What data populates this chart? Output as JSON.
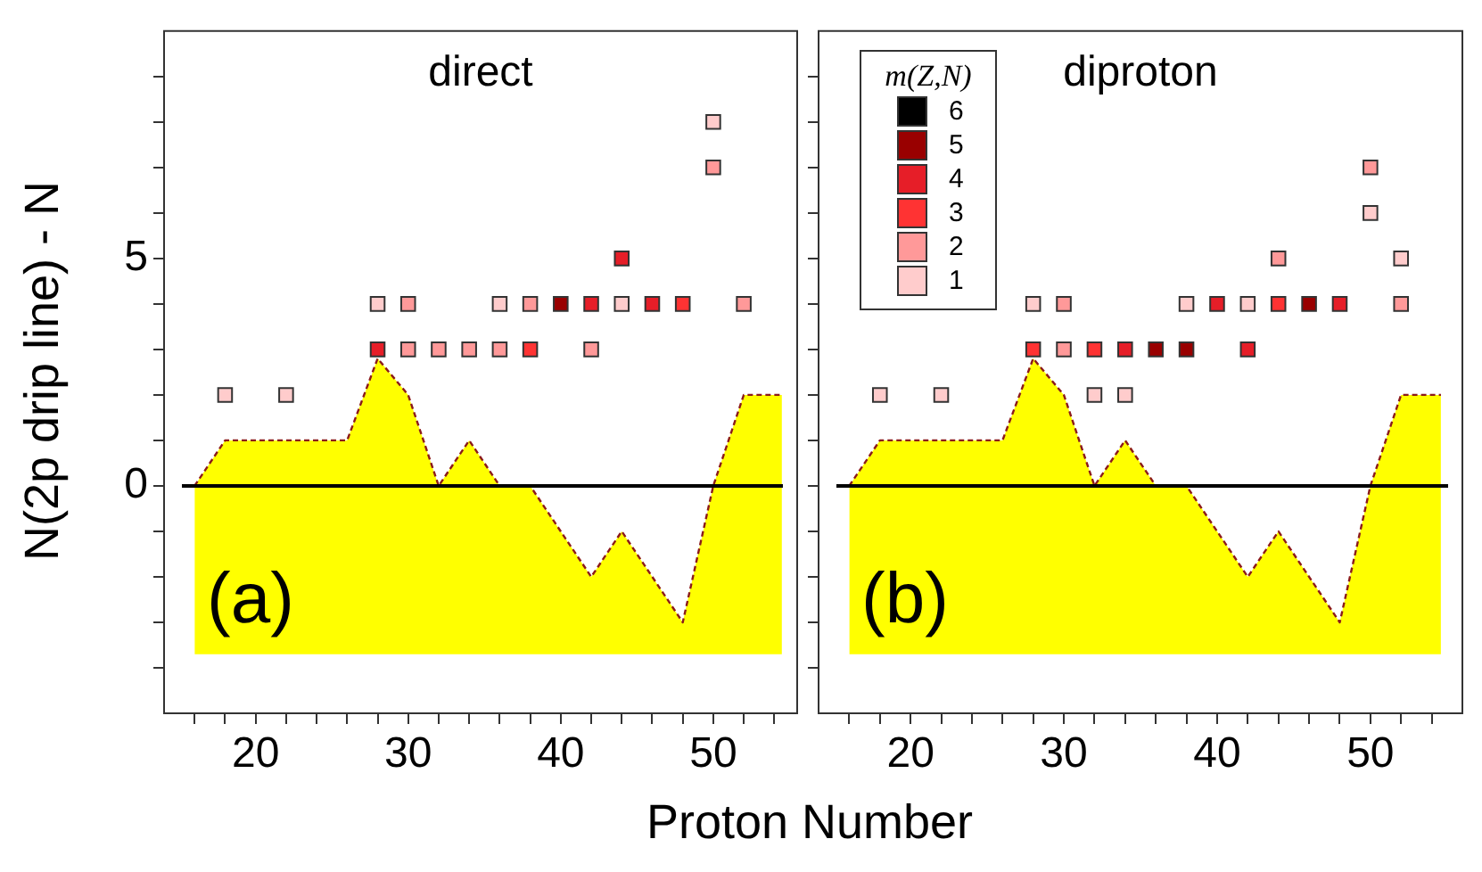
{
  "chart_data": [
    {
      "type": "scatter",
      "title": "direct",
      "xlabel": "Proton Number",
      "ylabel": "N(2p drip line) - N",
      "annotations": [
        "(a)"
      ],
      "xlim": [
        14,
        55.5
      ],
      "ylim": [
        -5,
        10
      ],
      "xticks": [
        {
          "value": 16,
          "label": null
        },
        {
          "value": 18,
          "label": null
        },
        20,
        {
          "value": 22,
          "label": null
        },
        {
          "value": 24,
          "label": null
        },
        {
          "value": 26,
          "label": null
        },
        {
          "value": 28,
          "label": null
        },
        30,
        {
          "value": 32,
          "label": null
        },
        {
          "value": 34,
          "label": null
        },
        {
          "value": 36,
          "label": null
        },
        {
          "value": 38,
          "label": null
        },
        40,
        {
          "value": 42,
          "label": null
        },
        {
          "value": 44,
          "label": null
        },
        {
          "value": 46,
          "label": null
        },
        {
          "value": 48,
          "label": null
        },
        50,
        {
          "value": 52,
          "label": null
        },
        {
          "value": 54,
          "label": null
        }
      ],
      "yticks": [
        {
          "value": -4,
          "label": null
        },
        {
          "value": -3,
          "label": null
        },
        {
          "value": -2,
          "label": null
        },
        {
          "value": -1,
          "label": null
        },
        0,
        {
          "value": 1,
          "label": null
        },
        {
          "value": 2,
          "label": null
        },
        {
          "value": 3,
          "label": null
        },
        {
          "value": 4,
          "label": null
        },
        5,
        {
          "value": 6,
          "label": null
        },
        {
          "value": 7,
          "label": null
        },
        {
          "value": 8,
          "label": null
        },
        {
          "value": 9,
          "label": null
        }
      ],
      "ref_lines": [
        {
          "axis": "y",
          "value": 0,
          "color": "#000000"
        }
      ],
      "marker": "square",
      "grid": false,
      "legend": false,
      "series": [
        {
          "type": "area",
          "color": "#ffff00",
          "line_style": "dashed",
          "marker": "none",
          "x": [
            16,
            16,
            18,
            26,
            28,
            30,
            32,
            34,
            36,
            38,
            42,
            44,
            48,
            50,
            52,
            54.5,
            54.5
          ],
          "values": [
            -3.7,
            0,
            1,
            1,
            2.8,
            2,
            0,
            1,
            0,
            0,
            -2,
            -1,
            -3,
            0,
            2,
            2,
            -3.7
          ]
        },
        {
          "color": "#990000",
          "x": [
            40
          ],
          "values": [
            4
          ]
        },
        {
          "color": "#e61e28",
          "x": [
            28,
            42,
            46,
            44
          ],
          "values": [
            3,
            4,
            4,
            5
          ]
        },
        {
          "color": "#ff3333",
          "x": [
            38,
            48
          ],
          "values": [
            3,
            4
          ]
        },
        {
          "color": "#ff9999",
          "x": [
            30,
            32,
            34,
            36,
            42,
            30,
            38,
            50
          ],
          "values": [
            3,
            3,
            3,
            3,
            3,
            4,
            4,
            7
          ]
        },
        {
          "color": "#ffcccc",
          "x": [
            18,
            22,
            28,
            36,
            44,
            50
          ],
          "values": [
            2,
            2,
            4,
            4,
            4,
            8
          ]
        },
        {
          "color": "#ff9999",
          "x": [
            52
          ],
          "values": [
            4
          ]
        }
      ]
    },
    {
      "type": "scatter",
      "title": "diproton",
      "annotations": [
        "(b)"
      ],
      "legend_title": "m(Z,N)",
      "xlim": [
        14,
        56
      ],
      "ylim": [
        -5,
        10
      ],
      "tick_labels": "x",
      "xticks": [
        {
          "value": 16,
          "label": null
        },
        {
          "value": 18,
          "label": null
        },
        20,
        {
          "value": 22,
          "label": null
        },
        {
          "value": 24,
          "label": null
        },
        {
          "value": 26,
          "label": null
        },
        {
          "value": 28,
          "label": null
        },
        30,
        {
          "value": 32,
          "label": null
        },
        {
          "value": 34,
          "label": null
        },
        {
          "value": 36,
          "label": null
        },
        {
          "value": 38,
          "label": null
        },
        40,
        {
          "value": 42,
          "label": null
        },
        {
          "value": 44,
          "label": null
        },
        {
          "value": 46,
          "label": null
        },
        {
          "value": 48,
          "label": null
        },
        50,
        {
          "value": 52,
          "label": null
        },
        {
          "value": 54,
          "label": null
        }
      ],
      "yticks": [
        {
          "value": -4,
          "label": null
        },
        {
          "value": -3,
          "label": null
        },
        {
          "value": -2,
          "label": null
        },
        {
          "value": -1,
          "label": null
        },
        {
          "value": 0,
          "label": null
        },
        {
          "value": 1,
          "label": null
        },
        {
          "value": 2,
          "label": null
        },
        {
          "value": 3,
          "label": null
        },
        {
          "value": 4,
          "label": null
        },
        {
          "value": 5,
          "label": null
        },
        {
          "value": 6,
          "label": null
        },
        {
          "value": 7,
          "label": null
        },
        {
          "value": 8,
          "label": null
        },
        {
          "value": 9,
          "label": null
        }
      ],
      "ref_lines": [
        {
          "axis": "y",
          "value": 0,
          "color": "#000000"
        }
      ],
      "marker": "square",
      "grid": false,
      "legend": "top left",
      "series": [
        {
          "type": "area",
          "color": "#ffff00",
          "line_style": "dashed",
          "marker": "none",
          "x": [
            16,
            16,
            18,
            26,
            28,
            30,
            32,
            34,
            36,
            38,
            42,
            44,
            48,
            50,
            52,
            54.6,
            54.6
          ],
          "values": [
            -3.7,
            0,
            1,
            1,
            2.8,
            2,
            0,
            1,
            0,
            0,
            -2,
            -1,
            -3,
            0,
            2,
            2,
            -3.7
          ]
        },
        {
          "name": "6",
          "color": "#000000"
        },
        {
          "name": "5",
          "color": "#990000",
          "x": [
            36,
            38,
            46
          ],
          "values": [
            3,
            3,
            4
          ]
        },
        {
          "name": "4",
          "color": "#e61e28",
          "x": [
            34,
            42,
            40,
            48
          ],
          "values": [
            3,
            3,
            4,
            4
          ]
        },
        {
          "name": "3",
          "color": "#ff3333",
          "x": [
            28,
            32,
            44
          ],
          "values": [
            3,
            3,
            4
          ]
        },
        {
          "name": "2",
          "color": "#ff9999",
          "x": [
            30,
            30,
            44,
            50
          ],
          "values": [
            3,
            4,
            5,
            7
          ]
        },
        {
          "name": "1",
          "color": "#ffcccc",
          "x": [
            18,
            22,
            32,
            34,
            28,
            38,
            42,
            52,
            50
          ],
          "values": [
            2,
            2,
            2,
            2,
            4,
            4,
            4,
            5,
            6
          ]
        },
        {
          "color": "#ff9999",
          "x": [
            52
          ],
          "values": [
            4
          ]
        }
      ]
    }
  ]
}
